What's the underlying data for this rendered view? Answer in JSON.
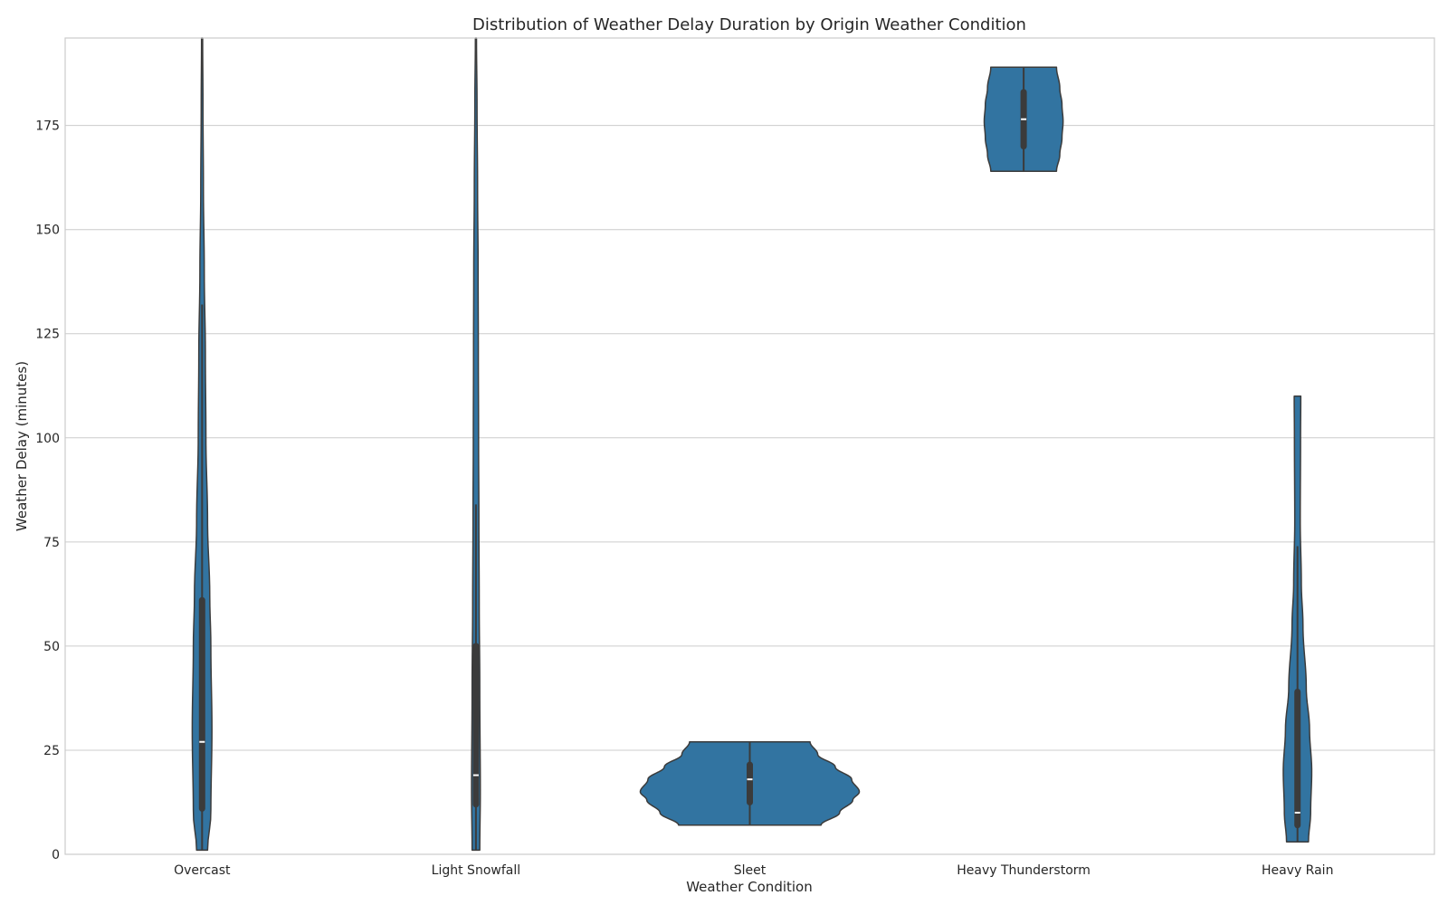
{
  "chart_data": {
    "type": "violin",
    "title": "Distribution of Weather Delay Duration by Origin Weather Condition",
    "xlabel": "Weather Condition",
    "ylabel": "Weather Delay (minutes)",
    "ylim": [
      0,
      196
    ],
    "yticks": [
      0,
      25,
      50,
      75,
      100,
      125,
      150,
      175
    ],
    "grid": true,
    "color": "#3274a1",
    "edge_color": "#3b3b3b",
    "categories": [
      "Overcast",
      "Light Snowfall",
      "Sleet",
      "Heavy Thunderstorm",
      "Heavy Rain"
    ],
    "distributions": [
      {
        "category": "Overcast",
        "min": 1,
        "max": 196,
        "q1": 11,
        "median": 27,
        "q3": 61,
        "whisker_low": 1,
        "whisker_high": 132,
        "density": [
          [
            1,
            0.05
          ],
          [
            10,
            0.08
          ],
          [
            30,
            0.09
          ],
          [
            50,
            0.08
          ],
          [
            62,
            0.07
          ],
          [
            80,
            0.05
          ],
          [
            100,
            0.035
          ],
          [
            120,
            0.03
          ],
          [
            140,
            0.02
          ],
          [
            160,
            0.012
          ],
          [
            180,
            0.008
          ],
          [
            196,
            0.005
          ]
        ]
      },
      {
        "category": "Light Snowfall",
        "min": 1,
        "max": 196,
        "q1": 12,
        "median": 19,
        "q3": 50,
        "whisker_low": 1,
        "whisker_high": 84,
        "density": [
          [
            1,
            0.035
          ],
          [
            15,
            0.04
          ],
          [
            40,
            0.035
          ],
          [
            60,
            0.03
          ],
          [
            80,
            0.027
          ],
          [
            100,
            0.024
          ],
          [
            120,
            0.022
          ],
          [
            140,
            0.02
          ],
          [
            160,
            0.015
          ],
          [
            180,
            0.01
          ],
          [
            196,
            0.005
          ]
        ]
      },
      {
        "category": "Sleet",
        "min": 7,
        "max": 27,
        "q1": 12.5,
        "median": 18,
        "q3": 21.5,
        "whisker_low": 7,
        "whisker_high": 27,
        "density": [
          [
            7,
            0.65
          ],
          [
            10,
            0.82
          ],
          [
            13,
            0.94
          ],
          [
            15,
            1.0
          ],
          [
            18,
            0.93
          ],
          [
            21,
            0.78
          ],
          [
            24,
            0.62
          ],
          [
            27,
            0.55
          ]
        ]
      },
      {
        "category": "Heavy Thunderstorm",
        "min": 164,
        "max": 189,
        "q1": 170,
        "median": 176.5,
        "q3": 183,
        "whisker_low": 164,
        "whisker_high": 189,
        "density": [
          [
            164,
            0.3
          ],
          [
            168,
            0.33
          ],
          [
            172,
            0.35
          ],
          [
            176,
            0.36
          ],
          [
            180,
            0.35
          ],
          [
            184,
            0.33
          ],
          [
            189,
            0.3
          ]
        ]
      },
      {
        "category": "Heavy Rain",
        "min": 3,
        "max": 110,
        "q1": 7,
        "median": 10,
        "q3": 39,
        "whisker_low": 3,
        "whisker_high": 74,
        "density": [
          [
            3,
            0.1
          ],
          [
            10,
            0.12
          ],
          [
            20,
            0.13
          ],
          [
            30,
            0.11
          ],
          [
            40,
            0.08
          ],
          [
            55,
            0.05
          ],
          [
            65,
            0.035
          ],
          [
            80,
            0.025
          ],
          [
            100,
            0.028
          ],
          [
            110,
            0.03
          ]
        ]
      }
    ]
  }
}
